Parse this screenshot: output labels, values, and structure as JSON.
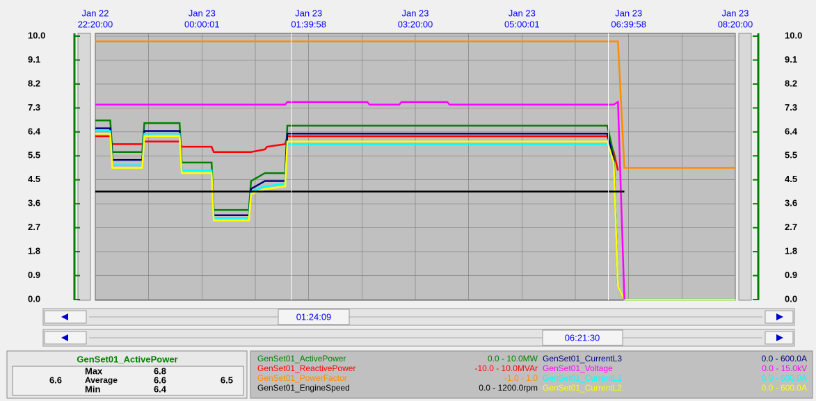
{
  "trend": {
    "x_ticks": [
      {
        "date": "Jan 22",
        "time": "22:20:00",
        "value": 0
      },
      {
        "date": "Jan 23",
        "time": "00:00:01",
        "value": 100
      },
      {
        "date": "Jan 23",
        "time": "01:39:58",
        "value": 200
      },
      {
        "date": "Jan 23",
        "time": "03:20:00",
        "value": 300
      },
      {
        "date": "Jan 23",
        "time": "05:00:01",
        "value": 400
      },
      {
        "date": "Jan 23",
        "time": "06:39:58",
        "value": 500
      },
      {
        "date": "Jan 23",
        "time": "08:20:00",
        "value": 600
      }
    ],
    "xlim": [
      0,
      600
    ],
    "ylim": [
      0,
      10
    ],
    "yticks": [
      {
        "value": 0,
        "label": "0.0"
      },
      {
        "value": 0.9091,
        "label": "0.9"
      },
      {
        "value": 1.8182,
        "label": "1.8"
      },
      {
        "value": 2.7273,
        "label": "2.7"
      },
      {
        "value": 3.6364,
        "label": "3.6"
      },
      {
        "value": 4.5455,
        "label": "4.5"
      },
      {
        "value": 5.4545,
        "label": "5.5"
      },
      {
        "value": 6.3636,
        "label": "6.4"
      },
      {
        "value": 7.2727,
        "label": "7.3"
      },
      {
        "value": 8.1818,
        "label": "8.2"
      },
      {
        "value": 9.0909,
        "label": "9.1"
      },
      {
        "value": 10,
        "label": "10.0"
      }
    ],
    "x": [
      0,
      14,
      16,
      44,
      46,
      79,
      81,
      109,
      111,
      144,
      146,
      159,
      161,
      178,
      180,
      255,
      257,
      285,
      287,
      330,
      332,
      480,
      486,
      490,
      496,
      600
    ],
    "series": [
      {
        "name": "GenSet01_PowerFactor",
        "range": "-1.0 - 1.0",
        "color": "#ff8c00",
        "values": [
          9.8,
          9.8,
          9.8,
          9.8,
          9.8,
          9.8,
          9.8,
          9.8,
          9.8,
          9.8,
          9.8,
          9.8,
          9.8,
          9.8,
          9.8,
          9.8,
          9.8,
          9.8,
          9.8,
          9.8,
          9.8,
          9.8,
          9.8,
          9.8,
          5.0,
          5.0
        ]
      },
      {
        "name": "GenSet01_ReactivePower",
        "range": "-10.0 - 10.0MVAr",
        "color": "#ff0000",
        "values": [
          6.2,
          6.2,
          5.9,
          5.9,
          6.0,
          6.0,
          5.8,
          5.8,
          5.6,
          5.6,
          5.6,
          5.7,
          5.8,
          5.9,
          6.2,
          6.2,
          6.2,
          6.2,
          6.2,
          6.2,
          6.2,
          6.2,
          5.6,
          4.9,
          null,
          null
        ]
      },
      {
        "name": "GenSet01_ActivePower",
        "range": "0.0 - 10.0MW",
        "color": "#008000",
        "values": [
          6.8,
          6.8,
          5.6,
          5.6,
          6.7,
          6.7,
          5.2,
          5.2,
          3.4,
          3.4,
          4.5,
          4.8,
          4.8,
          4.8,
          6.6,
          6.6,
          6.6,
          6.6,
          6.6,
          6.6,
          6.6,
          6.6,
          5.5,
          0.5,
          0,
          0
        ]
      },
      {
        "name": "GenSet01_CurrentL3",
        "range": "0.0 - 600.0A",
        "color": "#000080",
        "values": [
          6.5,
          6.5,
          5.3,
          5.3,
          6.4,
          6.4,
          4.9,
          4.9,
          3.2,
          3.2,
          4.2,
          4.5,
          4.5,
          4.5,
          6.3,
          6.3,
          6.3,
          6.3,
          6.3,
          6.3,
          6.3,
          6.3,
          5.3,
          0.5,
          0,
          0
        ]
      },
      {
        "name": "GenSet01_CurrentL1",
        "range": "0.0 - 600.0A",
        "color": "#00ffff",
        "values": [
          6.4,
          6.4,
          5.1,
          5.1,
          6.3,
          6.3,
          4.9,
          4.9,
          3.1,
          3.1,
          4.1,
          4.3,
          4.3,
          4.4,
          5.9,
          5.9,
          5.9,
          5.9,
          5.9,
          5.9,
          5.9,
          5.9,
          5.2,
          0.5,
          0,
          0
        ]
      },
      {
        "name": "GenSet01_CurrentL2",
        "range": "0.0 - 600.0A",
        "color": "#ffff00",
        "values": [
          6.3,
          6.3,
          5.0,
          5.0,
          6.2,
          6.2,
          4.8,
          4.8,
          3.0,
          3.0,
          4.0,
          4.2,
          4.2,
          4.3,
          6.0,
          6.0,
          6.0,
          6.0,
          6.0,
          6.0,
          6.0,
          6.0,
          5.2,
          0.5,
          0,
          0
        ]
      },
      {
        "name": "GenSet01_Voltage",
        "range": "0.0 - 15.0kV",
        "color": "#ff00ff",
        "values": [
          7.4,
          7.4,
          7.4,
          7.4,
          7.4,
          7.4,
          7.4,
          7.4,
          7.4,
          7.4,
          7.4,
          7.4,
          7.4,
          7.4,
          7.5,
          7.5,
          7.4,
          7.4,
          7.5,
          7.5,
          7.4,
          7.4,
          7.4,
          7.5,
          0,
          null
        ]
      },
      {
        "name": "GenSet01_EngineSpeed",
        "range": "0.0 - 1200.0rpm",
        "color": "#000000",
        "values": [
          4.1,
          4.1,
          4.1,
          4.1,
          4.1,
          4.1,
          4.1,
          4.1,
          4.1,
          4.1,
          4.1,
          4.1,
          4.1,
          4.1,
          4.1,
          4.1,
          4.1,
          4.1,
          4.1,
          4.1,
          4.1,
          4.1,
          4.1,
          4.1,
          4.1,
          null
        ]
      }
    ],
    "legend_order": [
      2,
      1,
      0,
      7,
      3,
      6,
      4,
      5
    ],
    "cursors": [
      {
        "label": "01:24:09",
        "value": 184
      },
      {
        "label": "06:21:30",
        "value": 481
      }
    ]
  },
  "stats": {
    "title": "GenSet01_ActivePower",
    "left": "6.6",
    "right": "6.5",
    "rows": [
      {
        "label": "Max",
        "value": "6.8"
      },
      {
        "label": "Average",
        "value": "6.6"
      },
      {
        "label": "Min",
        "value": "6.4"
      }
    ]
  }
}
